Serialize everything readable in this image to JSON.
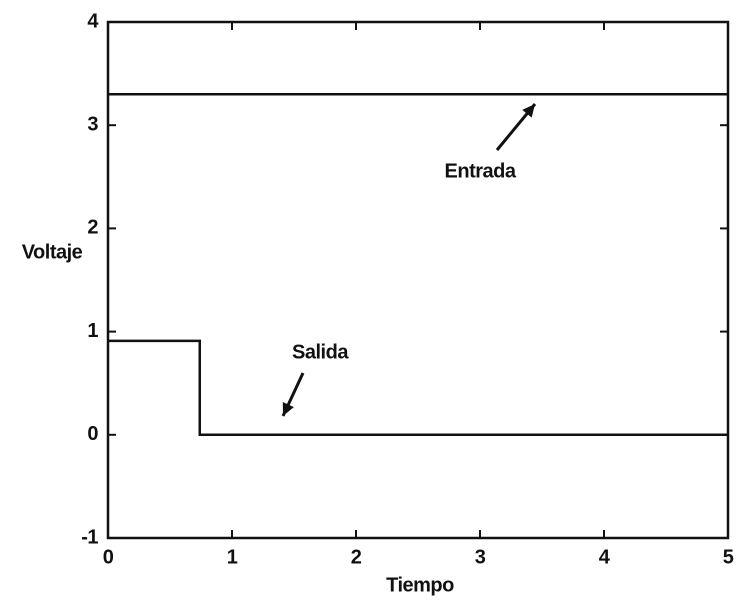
{
  "chart_data": {
    "type": "line",
    "xlabel": "Tiempo",
    "ylabel": "Voltaje",
    "xlim": [
      0,
      5
    ],
    "ylim": [
      -1,
      4
    ],
    "xticks": [
      0,
      1,
      2,
      3,
      4,
      5
    ],
    "yticks": [
      -1,
      0,
      1,
      2,
      3,
      4
    ],
    "series": [
      {
        "name": "Entrada",
        "color": "#111111",
        "x": [
          0,
          5
        ],
        "values": [
          3.3,
          3.3
        ]
      },
      {
        "name": "Salida",
        "color": "#111111",
        "x": [
          0,
          0.74,
          0.74,
          5
        ],
        "values": [
          0.91,
          0.91,
          0,
          0
        ]
      }
    ]
  }
}
